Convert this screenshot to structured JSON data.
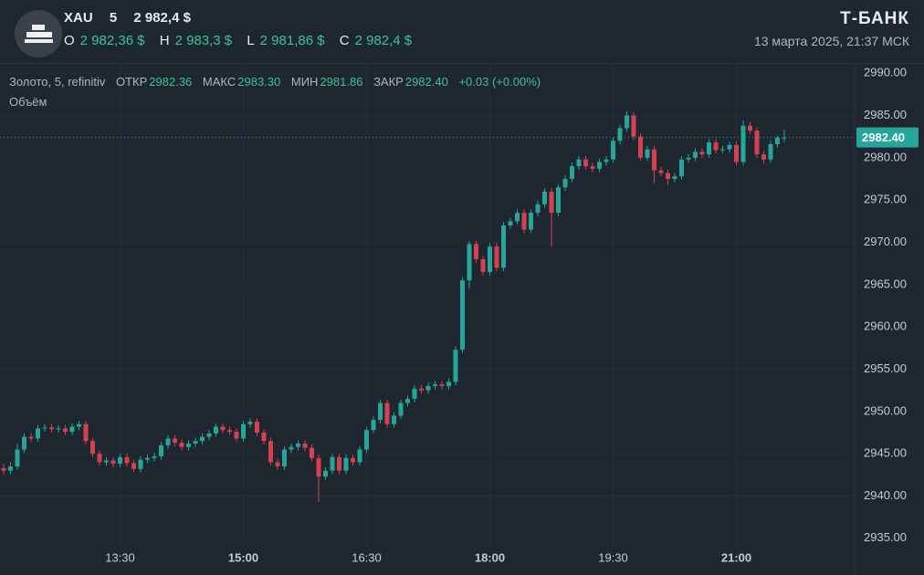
{
  "header": {
    "symbol": "XAU",
    "interval": "5",
    "price": "2 982,4 $",
    "o_label": "O",
    "o_value": "2 982,36 $",
    "h_label": "H",
    "h_value": "2 983,3 $",
    "l_label": "L",
    "l_value": "2 981,86 $",
    "c_label": "C",
    "c_value": "2 982,4 $",
    "brand": "Т-БАНК",
    "datetime": "13 марта 2025, 21:37 МСК"
  },
  "legend_bar": {
    "instrument": "Золото, 5, refinitiv",
    "open_label": "ОТКР",
    "open": "2982.36",
    "high_label": "МАКС",
    "high": "2983.30",
    "low_label": "МИН",
    "low": "2981.86",
    "close_label": "ЗАКР",
    "close": "2982.40",
    "change": "+0.03 (+0.00%)",
    "volume_label": "Объём"
  },
  "chart_data": {
    "type": "candlestick",
    "categories": [
      null,
      null,
      null,
      null,
      null,
      null,
      null,
      null,
      null,
      null,
      null,
      null,
      null,
      null,
      null,
      null,
      null,
      "13:30",
      null,
      null,
      null,
      null,
      null,
      null,
      null,
      null,
      null,
      null,
      null,
      null,
      null,
      null,
      null,
      null,
      null,
      "15:00",
      null,
      null,
      null,
      null,
      null,
      null,
      null,
      null,
      null,
      null,
      null,
      null,
      null,
      null,
      null,
      null,
      null,
      "16:30",
      null,
      null,
      null,
      null,
      null,
      null,
      null,
      null,
      null,
      null,
      null,
      null,
      null,
      null,
      null,
      null,
      null,
      "18:00",
      null,
      null,
      null,
      null,
      null,
      null,
      null,
      null,
      null,
      null,
      null,
      null,
      null,
      null,
      null,
      null,
      null,
      "19:30",
      null,
      null,
      null,
      null,
      null,
      null,
      null,
      null,
      null,
      null,
      null,
      null,
      null,
      null,
      null,
      null,
      null,
      "21:00",
      null,
      null,
      null,
      null,
      null,
      null,
      null
    ],
    "open": [
      2943.3,
      2943.0,
      2943.5,
      2945.5,
      2947.0,
      2946.8,
      2948.0,
      2948.1,
      2947.9,
      2948.0,
      2947.6,
      2948.2,
      2948.5,
      2946.5,
      2945.0,
      2944.0,
      2944.2,
      2943.8,
      2944.6,
      2943.9,
      2943.2,
      2944.3,
      2944.5,
      2944.7,
      2946.0,
      2946.8,
      2946.3,
      2945.8,
      2946.2,
      2946.5,
      2947.0,
      2947.4,
      2948.2,
      2947.8,
      2947.6,
      2946.8,
      2948.5,
      2948.8,
      2947.5,
      2946.5,
      2944.0,
      2943.5,
      2945.5,
      2945.8,
      2946.2,
      2945.7,
      2944.5,
      2942.3,
      2943.0,
      2944.6,
      2943.0,
      2944.5,
      2944.0,
      2945.5,
      2947.8,
      2949.0,
      2951.0,
      2948.5,
      2949.5,
      2951.0,
      2951.5,
      2952.7,
      2952.5,
      2953.0,
      2953.2,
      2953.0,
      2953.5,
      2957.3,
      2965.5,
      2969.8,
      2968.0,
      2966.5,
      2969.5,
      2967.0,
      2972.0,
      2972.5,
      2973.5,
      2971.5,
      2973.5,
      2974.5,
      2976.0,
      2973.5,
      2976.5,
      2977.5,
      2979.0,
      2979.8,
      2979.0,
      2978.7,
      2979.5,
      2979.8,
      2982.0,
      2983.5,
      2985.0,
      2982.5,
      2980.0,
      2981.0,
      2978.5,
      2978.2,
      2977.5,
      2977.8,
      2979.8,
      2980.0,
      2980.7,
      2980.4,
      2981.8,
      2980.9,
      2981.0,
      2981.5,
      2979.5,
      2983.8,
      2983.2,
      2980.4,
      2979.8,
      2981.6,
      2982.36
    ],
    "high": [
      2943.8,
      2944.0,
      2946.2,
      2947.4,
      2947.4,
      2948.4,
      2948.5,
      2948.5,
      2948.4,
      2948.4,
      2948.6,
      2948.9,
      2948.9,
      2946.9,
      2945.4,
      2944.6,
      2944.6,
      2945.0,
      2945.0,
      2944.3,
      2944.7,
      2944.9,
      2945.1,
      2946.4,
      2947.2,
      2947.2,
      2946.7,
      2946.6,
      2946.9,
      2947.4,
      2947.8,
      2948.6,
      2948.6,
      2948.2,
      2948.0,
      2948.9,
      2949.2,
      2949.2,
      2947.9,
      2946.9,
      2944.4,
      2945.9,
      2946.2,
      2946.6,
      2946.6,
      2946.1,
      2944.9,
      2943.4,
      2945.0,
      2945.0,
      2944.9,
      2944.9,
      2945.9,
      2948.2,
      2949.4,
      2951.4,
      2951.4,
      2949.9,
      2951.4,
      2951.9,
      2953.1,
      2953.1,
      2953.4,
      2953.6,
      2953.6,
      2953.9,
      2957.7,
      2965.9,
      2970.2,
      2970.2,
      2968.4,
      2969.9,
      2969.9,
      2972.4,
      2972.9,
      2973.9,
      2973.9,
      2973.9,
      2974.9,
      2976.4,
      2976.4,
      2976.9,
      2977.9,
      2979.4,
      2980.2,
      2980.2,
      2979.4,
      2979.9,
      2980.2,
      2982.4,
      2983.9,
      2985.5,
      2985.4,
      2982.9,
      2981.4,
      2981.4,
      2978.9,
      2978.6,
      2978.2,
      2980.2,
      2980.4,
      2981.1,
      2981.1,
      2982.2,
      2982.2,
      2981.4,
      2981.9,
      2981.9,
      2984.4,
      2984.2,
      2983.6,
      2980.8,
      2982.0,
      2982.6,
      2983.3
    ],
    "low": [
      2942.5,
      2942.6,
      2943.1,
      2945.1,
      2946.4,
      2946.4,
      2947.6,
      2947.5,
      2947.5,
      2947.2,
      2947.2,
      2947.8,
      2946.1,
      2944.6,
      2943.6,
      2943.6,
      2943.4,
      2943.4,
      2943.5,
      2942.8,
      2942.8,
      2943.9,
      2944.1,
      2944.3,
      2945.6,
      2945.9,
      2945.4,
      2945.4,
      2945.8,
      2946.1,
      2946.6,
      2947.0,
      2947.4,
      2947.2,
      2946.4,
      2946.4,
      2948.1,
      2947.1,
      2946.1,
      2943.6,
      2943.1,
      2943.1,
      2945.1,
      2945.4,
      2945.3,
      2944.1,
      2939.3,
      2941.9,
      2942.6,
      2942.6,
      2942.6,
      2943.6,
      2943.6,
      2945.1,
      2947.4,
      2948.6,
      2948.1,
      2948.1,
      2949.1,
      2950.6,
      2951.1,
      2952.1,
      2952.1,
      2952.6,
      2952.6,
      2952.6,
      2953.1,
      2956.9,
      2964.5,
      2967.6,
      2966.1,
      2966.1,
      2966.6,
      2966.6,
      2971.6,
      2972.1,
      2971.1,
      2971.1,
      2973.1,
      2974.1,
      2969.5,
      2973.1,
      2976.1,
      2977.1,
      2978.6,
      2978.6,
      2978.3,
      2978.3,
      2979.1,
      2979.4,
      2981.6,
      2983.1,
      2982.1,
      2979.6,
      2979.6,
      2977.0,
      2977.8,
      2976.8,
      2977.1,
      2977.4,
      2979.4,
      2979.6,
      2980.0,
      2980.0,
      2980.5,
      2980.5,
      2980.6,
      2979.1,
      2979.1,
      2982.8,
      2980.0,
      2979.3,
      2979.4,
      2981.2,
      2981.86
    ],
    "close": [
      2943.0,
      2943.5,
      2945.5,
      2947.0,
      2946.8,
      2948.0,
      2948.1,
      2947.9,
      2948.0,
      2947.6,
      2948.2,
      2948.5,
      2946.5,
      2945.0,
      2944.0,
      2944.2,
      2943.8,
      2944.6,
      2943.9,
      2943.2,
      2944.3,
      2944.5,
      2944.7,
      2946.0,
      2946.8,
      2946.3,
      2945.8,
      2946.2,
      2946.5,
      2947.0,
      2947.4,
      2948.2,
      2947.8,
      2947.6,
      2946.8,
      2948.5,
      2948.8,
      2947.5,
      2946.5,
      2944.0,
      2943.5,
      2945.5,
      2945.8,
      2946.2,
      2945.7,
      2944.5,
      2942.3,
      2943.0,
      2944.6,
      2943.0,
      2944.5,
      2944.0,
      2945.5,
      2947.8,
      2949.0,
      2951.0,
      2948.5,
      2949.5,
      2951.0,
      2951.5,
      2952.7,
      2952.5,
      2953.0,
      2953.2,
      2953.0,
      2953.5,
      2957.3,
      2965.5,
      2969.8,
      2968.0,
      2966.5,
      2969.5,
      2967.0,
      2972.0,
      2972.5,
      2973.5,
      2971.5,
      2973.5,
      2974.5,
      2976.0,
      2973.5,
      2976.5,
      2977.5,
      2979.0,
      2979.8,
      2979.0,
      2978.7,
      2979.5,
      2979.8,
      2982.0,
      2983.5,
      2985.0,
      2982.5,
      2980.0,
      2981.0,
      2978.5,
      2978.2,
      2977.5,
      2977.8,
      2979.8,
      2980.0,
      2980.7,
      2980.4,
      2981.8,
      2980.9,
      2981.0,
      2981.5,
      2979.5,
      2983.8,
      2983.2,
      2980.4,
      2979.8,
      2981.6,
      2982.36,
      2982.4
    ],
    "up_color": "#26a69a",
    "down_color": "#d6404f",
    "ylim": [
      2933.9,
      2991.1
    ],
    "yticks": [
      {
        "value": 2935,
        "label": "2935.00"
      },
      {
        "value": 2940,
        "label": "2940.00"
      },
      {
        "value": 2945,
        "label": "2945.00"
      },
      {
        "value": 2950,
        "label": "2950.00"
      },
      {
        "value": 2955,
        "label": "2955.00"
      },
      {
        "value": 2960,
        "label": "2960.00"
      },
      {
        "value": 2965,
        "label": "2965.00"
      },
      {
        "value": 2970,
        "label": "2970.00"
      },
      {
        "value": 2975,
        "label": "2975.00"
      },
      {
        "value": 2980,
        "label": "2980.00"
      },
      {
        "value": 2985,
        "label": "2985.00"
      },
      {
        "value": 2990,
        "label": "2990.00"
      }
    ],
    "price_line": {
      "value": 2982.4,
      "label": "2982.40"
    },
    "grid": true
  }
}
